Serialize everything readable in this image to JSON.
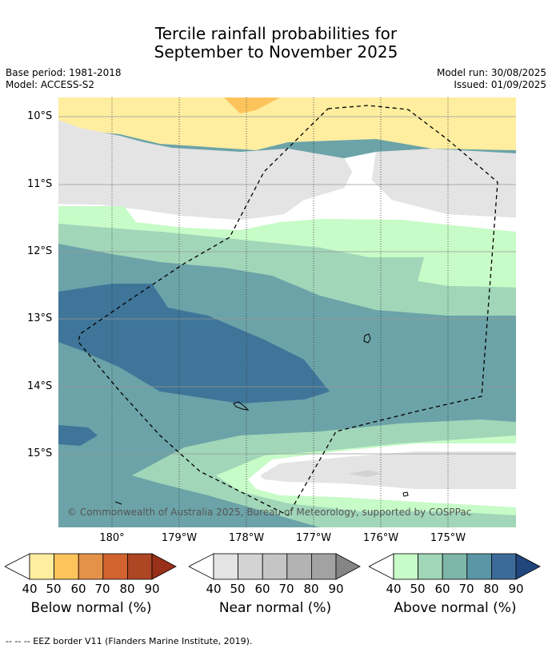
{
  "title_line1": "Tercile rainfall probabilities for",
  "title_line2": "September to November 2025",
  "base_period": "Base period: 1981-2018",
  "model": "Model: ACCESS-S2",
  "model_run": "Model run: 30/08/2025",
  "issued": "Issued: 01/09/2025",
  "lat_labels": [
    "10°S",
    "11°S",
    "12°S",
    "13°S",
    "14°S",
    "15°S"
  ],
  "lon_labels": [
    "180°",
    "179°W",
    "178°W",
    "177°W",
    "176°W",
    "175°W"
  ],
  "copyright": "© Commonwealth of Australia 2025, Bureau of Meteorology, supported by COSPPac",
  "legend": {
    "below": {
      "caption": "Below normal (%)",
      "ticks": [
        "40",
        "50",
        "60",
        "70",
        "80",
        "90"
      ],
      "colors": [
        "#ffeda0",
        "#fec45c",
        "#e4924a",
        "#d2632f",
        "#ad4623",
        "#99301a"
      ]
    },
    "near": {
      "caption": "Near normal (%)",
      "ticks": [
        "40",
        "50",
        "60",
        "70",
        "80",
        "90"
      ],
      "colors": [
        "#e4e4e4",
        "#d3d3d3",
        "#c5c5c5",
        "#b3b3b3",
        "#a2a2a2",
        "#858585"
      ]
    },
    "above": {
      "caption": "Above normal (%)",
      "ticks": [
        "40",
        "50",
        "60",
        "70",
        "80",
        "90"
      ],
      "colors": [
        "#c7fbc7",
        "#a1d6b9",
        "#7fb6aa",
        "#5b96a6",
        "#3d6b99",
        "#20467c"
      ]
    }
  },
  "footnote": "-- -- -- EEZ border V11 (Flanders Marine Institute, 2019)."
}
